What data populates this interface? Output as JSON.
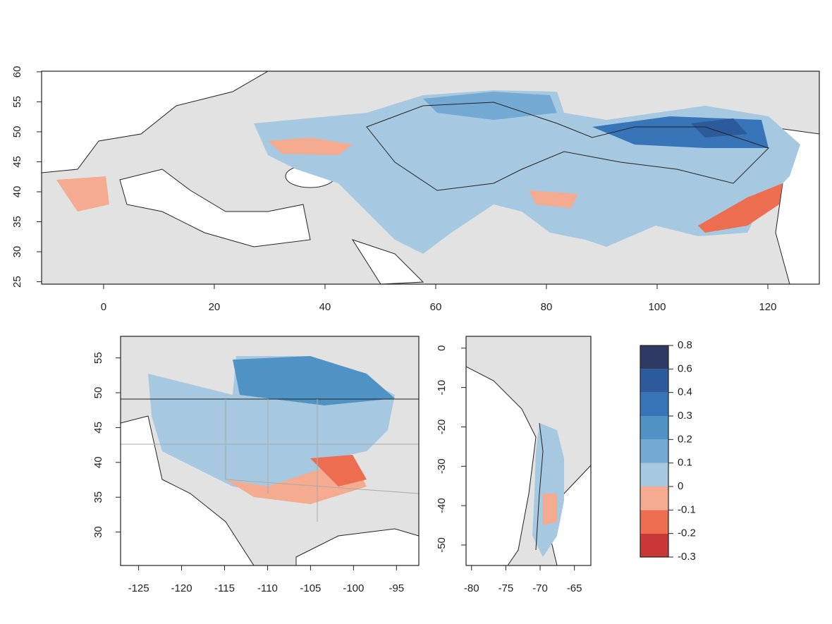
{
  "panels": [
    {
      "xlim": [
        -11.2,
        129.3
      ],
      "ylim": [
        24.6,
        60.1
      ],
      "xticks": [
        0,
        20,
        40,
        60,
        80,
        100,
        120
      ],
      "yticks": [
        25,
        30,
        35,
        40,
        45,
        50,
        55,
        60
      ]
    },
    {
      "xlim": [
        -127.1,
        -92.4
      ],
      "ylim": [
        25.2,
        58.1
      ],
      "xticks": [
        -125,
        -120,
        -115,
        -110,
        -105,
        -100,
        -95
      ],
      "yticks": [
        30,
        35,
        40,
        45,
        50,
        55
      ]
    },
    {
      "xlim": [
        -80.8,
        -62.6
      ],
      "ylim": [
        -55.2,
        3.0
      ],
      "xticks": [
        -80,
        -75,
        -70,
        -65
      ],
      "yticks": [
        0,
        -10,
        -20,
        -30,
        -40,
        -50
      ]
    }
  ],
  "colorbar": {
    "breaks": [
      -0.3,
      -0.2,
      -0.1,
      0,
      0.1,
      0.2,
      0.3,
      0.4,
      0.6,
      0.8
    ],
    "colors": [
      "#c83838",
      "#ec6d50",
      "#f4ab8f",
      "#a6c8e0",
      "#74a9d3",
      "#4f93c5",
      "#3775b8",
      "#2c5a9a",
      "#2e3a64"
    ]
  }
}
